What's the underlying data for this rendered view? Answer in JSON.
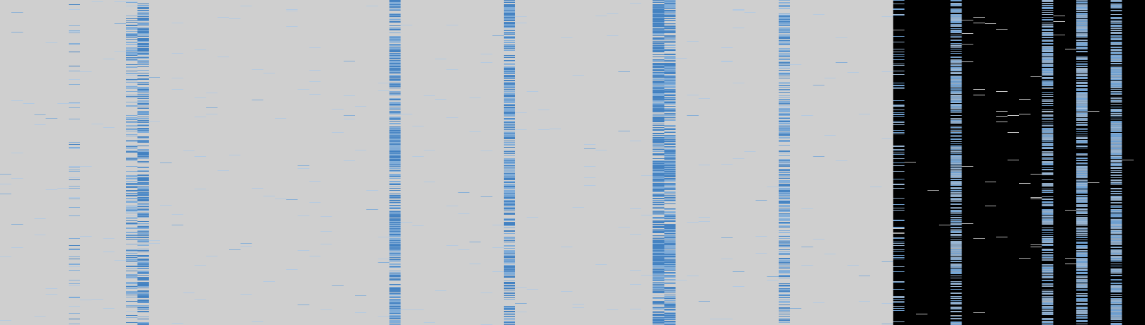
{
  "chart_data": {
    "type": "heatmap",
    "title": "",
    "xlabel": "",
    "ylabel": "",
    "rows": 460,
    "columns": 100,
    "panels": [
      {
        "background": "#cfcfcf",
        "columns": [
          0,
          78
        ]
      },
      {
        "background": "#000000",
        "columns": [
          78,
          100
        ]
      }
    ],
    "colors": {
      "light_panel_background": "#cfcfcf",
      "dark_panel_background": "#000000",
      "cell_dark_blue": "#3f7fc1",
      "cell_mid_blue": "#74a7d9",
      "cell_light_blue": "#a9c8e8",
      "cell_white": "#ffffff"
    },
    "bands": [
      {
        "columns": [
          0,
          78
        ],
        "density": 0.01,
        "min_intensity": 0.15,
        "max_intensity": 0.55
      },
      {
        "columns": [
          78,
          100
        ],
        "density": 0.01,
        "min_intensity": 0.15,
        "max_intensity": 0.55
      },
      {
        "columns": [
          6,
          7
        ],
        "density": 0.18,
        "min_intensity": 0.35,
        "max_intensity": 0.85
      },
      {
        "columns": [
          11,
          12
        ],
        "density": 0.52,
        "min_intensity": 0.45,
        "max_intensity": 0.9
      },
      {
        "columns": [
          12,
          13
        ],
        "density": 0.78,
        "min_intensity": 0.65,
        "max_intensity": 1.0
      },
      {
        "columns": [
          34,
          35
        ],
        "density": 0.95,
        "min_intensity": 0.55,
        "max_intensity": 1.0
      },
      {
        "columns": [
          44,
          45
        ],
        "density": 0.88,
        "min_intensity": 0.55,
        "max_intensity": 1.0
      },
      {
        "columns": [
          57,
          58
        ],
        "density": 1.0,
        "min_intensity": 0.7,
        "max_intensity": 1.0
      },
      {
        "columns": [
          58,
          59
        ],
        "density": 0.95,
        "min_intensity": 0.55,
        "max_intensity": 1.0
      },
      {
        "columns": [
          68,
          69
        ],
        "density": 0.75,
        "min_intensity": 0.45,
        "max_intensity": 0.95
      },
      {
        "columns": [
          78,
          79
        ],
        "density": 0.25,
        "min_intensity": 0.6,
        "max_intensity": 1.0
      },
      {
        "columns": [
          83,
          84
        ],
        "density": 0.86,
        "min_intensity": 0.55,
        "max_intensity": 1.0
      },
      {
        "columns": [
          91,
          92
        ],
        "density": 0.82,
        "min_intensity": 0.55,
        "max_intensity": 1.0
      },
      {
        "columns": [
          94,
          95
        ],
        "density": 0.92,
        "min_intensity": 0.55,
        "max_intensity": 1.0
      },
      {
        "columns": [
          97,
          98
        ],
        "density": 0.9,
        "min_intensity": 0.55,
        "max_intensity": 1.0
      }
    ]
  }
}
